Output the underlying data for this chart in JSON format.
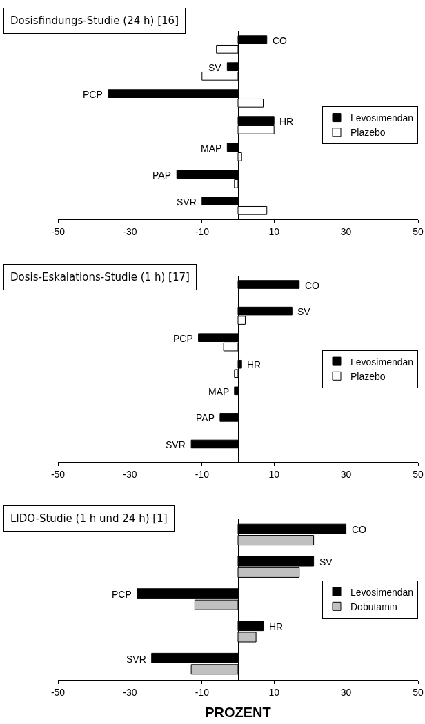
{
  "chart_data": [
    {
      "type": "bar",
      "orientation": "horizontal",
      "title": "Dosisfindungs-Studie (24 h) [16]",
      "categories": [
        "CO",
        "SV",
        "PCP",
        "HR",
        "MAP",
        "PAP",
        "SVR"
      ],
      "series": [
        {
          "name": "Levosimendan",
          "color": "#000000",
          "values": [
            8,
            -3,
            -36,
            10,
            -3,
            -17,
            -10
          ]
        },
        {
          "name": "Plazebo",
          "color": "#ffffff",
          "values": [
            -6,
            -10,
            7,
            10,
            1,
            -1,
            8
          ]
        }
      ],
      "xlim": [
        -50,
        50
      ],
      "xticks": [
        -50,
        -30,
        -10,
        10,
        30,
        50
      ],
      "legend": "right"
    },
    {
      "type": "bar",
      "orientation": "horizontal",
      "title": "Dosis-Eskalations-Studie (1 h) [17]",
      "categories": [
        "CO",
        "SV",
        "PCP",
        "HR",
        "MAP",
        "PAP",
        "SVR"
      ],
      "series": [
        {
          "name": "Levosimendan",
          "color": "#000000",
          "values": [
            17,
            15,
            -11,
            1,
            -1,
            -5,
            -13
          ]
        },
        {
          "name": "Plazebo",
          "color": "#ffffff",
          "values": [
            null,
            2,
            -4,
            -1,
            null,
            null,
            null
          ]
        }
      ],
      "xlim": [
        -50,
        50
      ],
      "xticks": [
        -50,
        -30,
        -10,
        10,
        30,
        50
      ],
      "legend": "right"
    },
    {
      "type": "bar",
      "orientation": "horizontal",
      "title": "LIDO-Studie (1 h und 24 h) [1]",
      "xlabel": "PROZENT",
      "categories": [
        "CO",
        "SV",
        "PCP",
        "HR",
        "SVR"
      ],
      "series": [
        {
          "name": "Levosimendan",
          "color": "#000000",
          "values": [
            30,
            21,
            -28,
            7,
            -24
          ]
        },
        {
          "name": "Dobutamin",
          "color": "#c0c0c0",
          "values": [
            21,
            17,
            -12,
            5,
            -13
          ]
        }
      ],
      "xlim": [
        -50,
        50
      ],
      "xticks": [
        -50,
        -30,
        -10,
        10,
        30,
        50
      ],
      "legend": "right"
    }
  ]
}
